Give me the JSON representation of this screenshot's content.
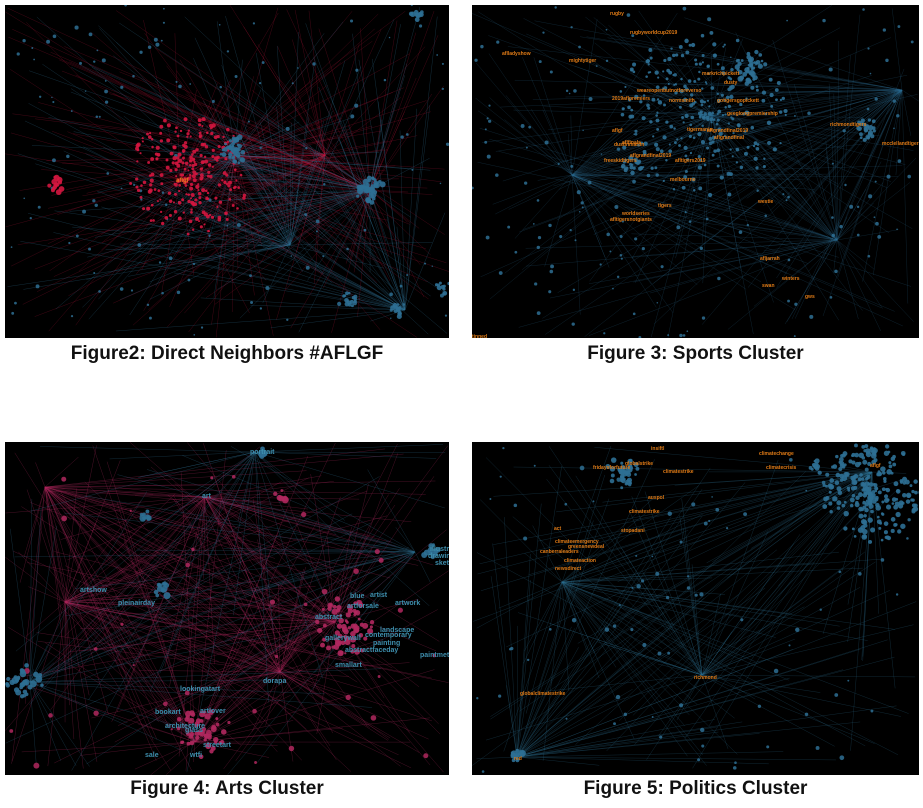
{
  "colors": {
    "background": "#000000",
    "crimson": "#d3163f",
    "steel_blue": "#2e6f93",
    "teal_blue": "#3e8fae",
    "magenta": "#b0285e",
    "orange_label": "#e07b16",
    "caption_text": "#111111"
  },
  "figures": [
    {
      "id": "figure2",
      "caption": "Figure2: Direct Neighbors #AFLGF",
      "labels": [
        "aflgf"
      ]
    },
    {
      "id": "figure3",
      "caption": "Figure 3: Sports Cluster",
      "labels": [
        "rugby",
        "rugbyworldcup2019",
        "aflladyshow",
        "mightytiger",
        "markrichpickett",
        "dusty",
        "weareopenbutnotforeverso",
        "2019aflpremiers",
        "normsmith",
        "gotigersgopickett",
        "geeglongpremiership",
        "richmondtigers",
        "aflgf",
        "tigermania",
        "aflgrandfinal",
        "aflgrandfinal2019",
        "dustinmartin",
        "aflfinals",
        "aflgrandfinal2019",
        "freeskidtigers",
        "afltigers2019",
        "melbourne",
        "tigers",
        "worldseries",
        "afltigersnotgiants",
        "westie",
        "afljarrah",
        "winters",
        "swan",
        "gws",
        "mcclellandtigers",
        "tinned"
      ]
    },
    {
      "id": "figure4",
      "caption": "Figure 4: Arts Cluster",
      "labels": [
        "portrait",
        "art",
        "illustration",
        "drawing",
        "sketch",
        "pleinairday",
        "blue",
        "artist",
        "artwork",
        "artforsale",
        "abstract",
        "landscape",
        "contemporary",
        "gallerywall",
        "painting",
        "abstractfaceday",
        "paintmetitled",
        "smallart",
        "lookingatart",
        "dorapa",
        "bookart",
        "artlover",
        "architecture",
        "glass",
        "streetart",
        "wtfi",
        "sale",
        "artshow"
      ]
    },
    {
      "id": "figure5",
      "caption": "Figure 5: Politics Cluster",
      "labels": [
        "fridaysforfuture",
        "globalstrike",
        "climatestrike",
        "climatechange",
        "climatecrisis",
        "aflgf",
        "auspol",
        "act",
        "climatestrike",
        "stopadani",
        "climateemergency",
        "greensnewdeal",
        "canberraleaders",
        "climateaction",
        "newsdirect",
        "globalclimatestrike",
        "richmond",
        "red",
        "insiftl"
      ]
    }
  ]
}
